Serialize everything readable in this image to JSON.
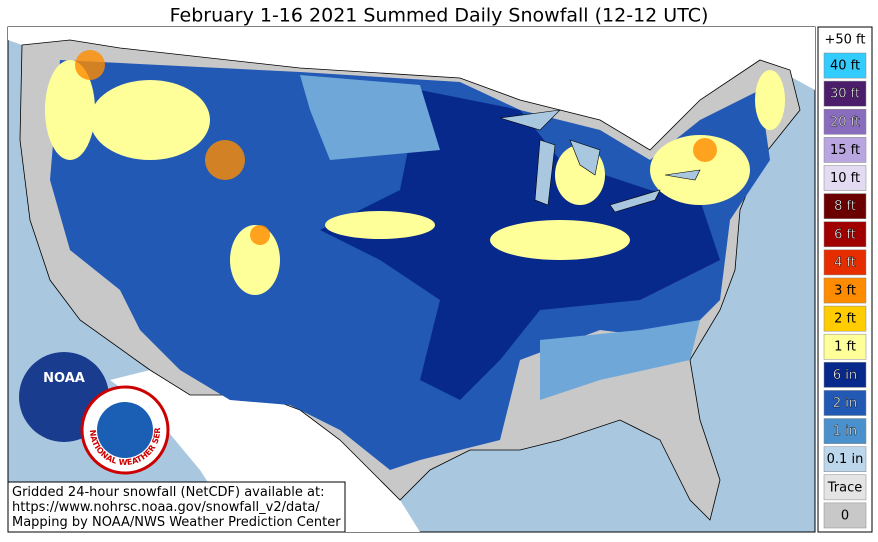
{
  "header": {
    "title": "February 1-16 2021 Summed Daily Snowfall (12-12 UTC)"
  },
  "legend": {
    "top_label": "+50 ft",
    "items": [
      {
        "label": "40 ft",
        "color": "#33ccff"
      },
      {
        "label": "30 ft",
        "color": "#4b1d6b"
      },
      {
        "label": "20 ft",
        "color": "#8a6cbf"
      },
      {
        "label": "15 ft",
        "color": "#b9a6e0"
      },
      {
        "label": "10 ft",
        "color": "#e2dbf2"
      },
      {
        "label": "8 ft",
        "color": "#6b0000"
      },
      {
        "label": "6 ft",
        "color": "#a00000"
      },
      {
        "label": "4 ft",
        "color": "#e52d00"
      },
      {
        "label": "3 ft",
        "color": "#ff8c00"
      },
      {
        "label": "2 ft",
        "color": "#ffcc00"
      },
      {
        "label": "1 ft",
        "color": "#ffff99"
      },
      {
        "label": "6 in",
        "color": "#08298c"
      },
      {
        "label": "2 in",
        "color": "#2159b5"
      },
      {
        "label": "1 in",
        "color": "#4a90cc"
      },
      {
        "label": "0.1 in",
        "color": "#bcd6ec"
      },
      {
        "label": "Trace",
        "color": "#e4e4e4"
      },
      {
        "label": "0",
        "color": "#c8c8c8"
      }
    ]
  },
  "logos": {
    "noaa": "NOAA",
    "nws": "NATIONAL WEATHER SERVICE"
  },
  "footer": {
    "lines": [
      "Gridded 24-hour snowfall (NetCDF) available at:",
      "https://www.nohrsc.noaa.gov/snowfall_v2/data/",
      "Mapping by NOAA/NWS Weather Prediction Center"
    ]
  }
}
